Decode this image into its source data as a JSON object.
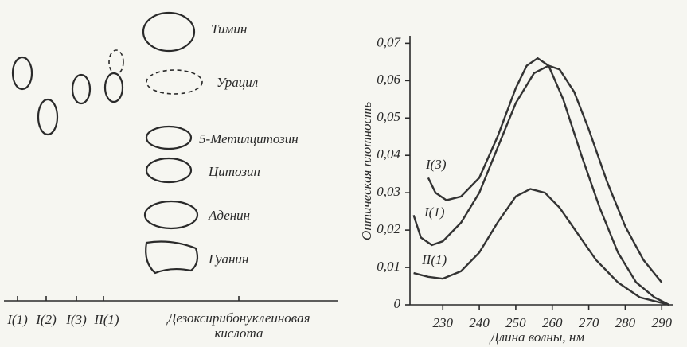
{
  "chromatogram": {
    "lanes": [
      "I(1)",
      "I(2)",
      "I(3)",
      "II(1)"
    ],
    "dna_label": [
      "Дезоксирибонуклеиновая",
      "кислота"
    ],
    "spots": [
      "Тимин",
      "Урацил",
      "5-Метилцитозин",
      "Цитозин",
      "Аденин",
      "Гуанин"
    ]
  },
  "chart_data": {
    "type": "line",
    "x_label": "Длина волны, нм",
    "y_label": "Оптическая плотность",
    "xlim": [
      221,
      293
    ],
    "ylim": [
      0,
      0.072
    ],
    "xticks": [
      230,
      240,
      250,
      260,
      270,
      280,
      290
    ],
    "yticks": [
      0,
      {
        "value": 0.01,
        "label": "0,01"
      },
      {
        "value": 0.02,
        "label": "0,02"
      },
      {
        "value": 0.03,
        "label": "0,03"
      },
      {
        "value": 0.04,
        "label": "0,04"
      },
      {
        "value": 0.05,
        "label": "0,05"
      },
      {
        "value": 0.06,
        "label": "0,06"
      },
      {
        "value": 0.07,
        "label": "0,07"
      }
    ],
    "series": [
      {
        "name": "I(3)",
        "color": "#333333",
        "x": [
          226,
          228,
          231,
          235,
          240,
          245,
          250,
          253,
          256,
          259,
          263,
          268,
          273,
          278,
          283,
          288,
          292
        ],
        "values": [
          0.034,
          0.03,
          0.028,
          0.029,
          0.034,
          0.045,
          0.058,
          0.064,
          0.066,
          0.064,
          0.055,
          0.04,
          0.026,
          0.014,
          0.006,
          0.002,
          0
        ]
      },
      {
        "name": "I(1)",
        "color": "#333333",
        "x": [
          222,
          224,
          227,
          230,
          235,
          240,
          245,
          250,
          255,
          259,
          262,
          266,
          270,
          275,
          280,
          285,
          290
        ],
        "values": [
          0.024,
          0.018,
          0.016,
          0.017,
          0.022,
          0.03,
          0.042,
          0.054,
          0.062,
          0.064,
          0.063,
          0.057,
          0.047,
          0.033,
          0.021,
          0.012,
          0.006
        ]
      },
      {
        "name": "II(1)",
        "color": "#333333",
        "x": [
          222,
          226,
          230,
          235,
          240,
          245,
          250,
          254,
          258,
          262,
          267,
          272,
          278,
          284,
          292
        ],
        "values": [
          0.0085,
          0.0075,
          0.007,
          0.009,
          0.014,
          0.022,
          0.029,
          0.031,
          0.03,
          0.026,
          0.019,
          0.012,
          0.006,
          0.002,
          0
        ]
      }
    ]
  }
}
